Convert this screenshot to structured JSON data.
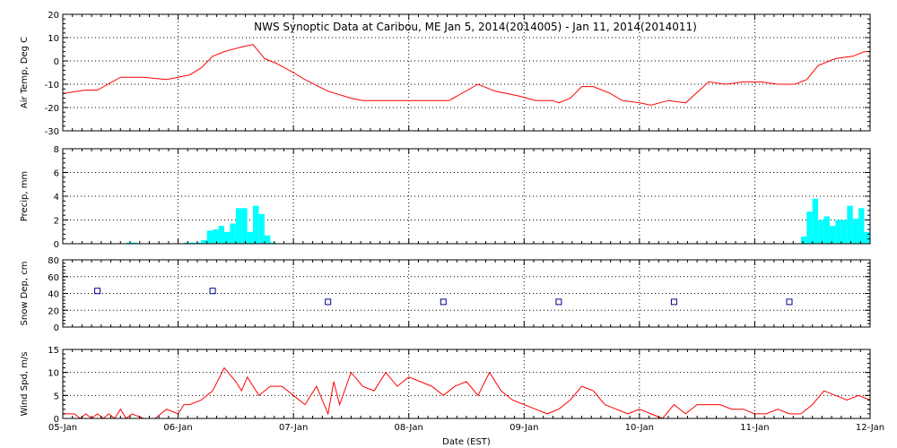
{
  "chart_data": {
    "type": "line",
    "title": "NWS Synoptic Data at Caribou, ME   Jan  5, 2014(2014005) - Jan 11, 2014(2014011)",
    "xlabel": "Date (EST)",
    "x_ticks": [
      "05-Jan",
      "06-Jan",
      "07-Jan",
      "08-Jan",
      "09-Jan",
      "10-Jan",
      "11-Jan",
      "12-Jan"
    ],
    "xlim": [
      0,
      7
    ],
    "x_units": "days",
    "panels": [
      {
        "id": "air-temp",
        "type": "line",
        "ylabel": "Air Temp, Deg C",
        "ylim": [
          -30,
          20
        ],
        "yticks": [
          -30,
          -20,
          -10,
          0,
          10,
          20
        ],
        "color": "#ff0000",
        "x": [
          0,
          0.2,
          0.3,
          0.5,
          0.7,
          0.9,
          1.0,
          1.1,
          1.2,
          1.3,
          1.4,
          1.55,
          1.65,
          1.75,
          1.85,
          2.0,
          2.1,
          2.3,
          2.5,
          2.6,
          2.8,
          3.0,
          3.15,
          3.35,
          3.6,
          3.75,
          3.95,
          4.1,
          4.25,
          4.3,
          4.4,
          4.5,
          4.6,
          4.75,
          4.85,
          5.0,
          5.1,
          5.25,
          5.4,
          5.6,
          5.75,
          5.9,
          6.05,
          6.2,
          6.35,
          6.45,
          6.55,
          6.7,
          6.85,
          6.95,
          7.0
        ],
        "values": [
          -14,
          -12.5,
          -12.5,
          -7,
          -7,
          -8,
          -7,
          -6,
          -3,
          2,
          4,
          6,
          7,
          1,
          -1,
          -5,
          -8,
          -13,
          -16,
          -17,
          -17,
          -17,
          -17,
          -17,
          -10,
          -13,
          -15,
          -17,
          -17,
          -18,
          -16,
          -11,
          -11,
          -14,
          -17,
          -18,
          -19,
          -17,
          -18,
          -9,
          -10,
          -9,
          -9,
          -10,
          -10,
          -8,
          -2,
          1,
          2,
          4,
          4
        ]
      },
      {
        "id": "precip",
        "type": "bar",
        "ylabel": "Precip, mm",
        "ylim": [
          0,
          8
        ],
        "yticks": [
          0,
          2,
          4,
          6,
          8
        ],
        "color": "#00ffff",
        "x": [
          0.55,
          0.6,
          1.05,
          1.1,
          1.15,
          1.2,
          1.25,
          1.3,
          1.35,
          1.4,
          1.45,
          1.5,
          1.55,
          1.6,
          1.65,
          1.7,
          1.75,
          1.8,
          6.4,
          6.45,
          6.5,
          6.55,
          6.6,
          6.65,
          6.7,
          6.75,
          6.8,
          6.85,
          6.9,
          6.95
        ],
        "values": [
          0.1,
          0.1,
          0.1,
          0.1,
          0.1,
          0.3,
          1.1,
          1.2,
          1.5,
          1.0,
          1.7,
          3.0,
          3.0,
          1.0,
          3.2,
          2.5,
          0.7,
          0.1,
          0.6,
          2.7,
          3.8,
          2.0,
          2.3,
          1.5,
          2.0,
          2.0,
          3.2,
          2.1,
          3.0,
          1.0
        ]
      },
      {
        "id": "snow-depth",
        "type": "scatter",
        "ylabel": "Snow Dep, cm",
        "ylim": [
          0,
          80
        ],
        "yticks": [
          0,
          20,
          40,
          60,
          80
        ],
        "color": "#00008b",
        "x": [
          0.3,
          1.3,
          2.3,
          3.3,
          4.3,
          5.3,
          6.3
        ],
        "values": [
          43,
          43,
          30,
          30,
          30,
          30,
          30
        ]
      },
      {
        "id": "wind-speed",
        "type": "line",
        "ylabel": "Wind Spd, m/s",
        "ylim": [
          0,
          15
        ],
        "yticks": [
          0,
          5,
          10,
          15
        ],
        "color": "#ff0000",
        "x": [
          0,
          0.1,
          0.15,
          0.2,
          0.25,
          0.3,
          0.35,
          0.4,
          0.45,
          0.5,
          0.55,
          0.6,
          0.7,
          0.8,
          0.9,
          1.0,
          1.05,
          1.1,
          1.2,
          1.3,
          1.4,
          1.5,
          1.55,
          1.6,
          1.7,
          1.8,
          1.9,
          2.0,
          2.1,
          2.2,
          2.3,
          2.35,
          2.4,
          2.5,
          2.6,
          2.7,
          2.8,
          2.9,
          3.0,
          3.1,
          3.2,
          3.3,
          3.4,
          3.5,
          3.6,
          3.7,
          3.8,
          3.9,
          4.0,
          4.1,
          4.2,
          4.3,
          4.4,
          4.5,
          4.6,
          4.7,
          4.8,
          4.9,
          5.0,
          5.1,
          5.2,
          5.3,
          5.4,
          5.5,
          5.6,
          5.7,
          5.8,
          5.9,
          6.0,
          6.1,
          6.2,
          6.3,
          6.4,
          6.5,
          6.6,
          6.7,
          6.8,
          6.9,
          7.0
        ],
        "values": [
          1,
          1,
          0,
          1,
          0,
          1,
          0,
          1,
          0,
          2,
          0,
          1,
          0,
          0,
          2,
          1,
          3,
          3,
          4,
          6,
          11,
          8,
          6,
          9,
          5,
          7,
          7,
          5,
          3,
          7,
          1,
          8,
          3,
          10,
          7,
          6,
          10,
          7,
          9,
          8,
          7,
          5,
          7,
          8,
          5,
          10,
          6,
          4,
          3,
          2,
          1,
          2,
          4,
          7,
          6,
          3,
          2,
          1,
          2,
          1,
          0,
          3,
          1,
          3,
          3,
          3,
          2,
          2,
          1,
          1,
          2,
          1,
          1,
          3,
          6,
          5,
          4,
          5,
          4
        ]
      }
    ]
  }
}
